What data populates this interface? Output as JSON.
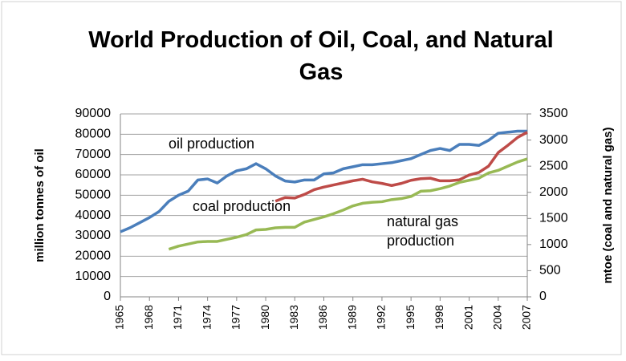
{
  "chart_data": {
    "type": "line",
    "title": "World Production of Oil, Coal, and Natural Gas",
    "ylabel": "million tonnes of oil",
    "y2label": "mtoe (coal and natural gas)",
    "categories": [
      "1965",
      null,
      null,
      "1968",
      null,
      null,
      "1971",
      null,
      null,
      "1974",
      null,
      null,
      "1977",
      null,
      null,
      "1980",
      null,
      null,
      "1983",
      null,
      null,
      "1986",
      null,
      null,
      "1989",
      null,
      null,
      "1992",
      null,
      null,
      "1995",
      null,
      null,
      "1998",
      null,
      null,
      "2001",
      null,
      null,
      "2004",
      null,
      null,
      "2007"
    ],
    "ylim": [
      0,
      90000
    ],
    "yticks": [
      0,
      10000,
      20000,
      30000,
      40000,
      50000,
      60000,
      70000,
      80000,
      90000
    ],
    "y2lim": [
      0,
      3500
    ],
    "y2ticks": [
      0,
      500,
      1000,
      1500,
      2000,
      2500,
      3000,
      3500
    ],
    "grid": true,
    "series": [
      {
        "name": "oil production",
        "color": "#4a7ebb",
        "values": [
          32000,
          34000,
          36500,
          39000,
          42000,
          47000,
          50000,
          52000,
          57500,
          58000,
          56000,
          59500,
          62000,
          63000,
          65500,
          63000,
          59500,
          57000,
          56500,
          57500,
          57500,
          60500,
          61000,
          63000,
          64000,
          65000,
          65000,
          65500,
          66000,
          67000,
          68000,
          70000,
          72000,
          73000,
          72000,
          75000,
          75000,
          74500,
          77000,
          80500,
          81000,
          81500,
          81500
        ]
      },
      {
        "name": "coal production",
        "color": "#be4b48",
        "axis": "y2",
        "values": [
          null,
          null,
          null,
          null,
          null,
          null,
          null,
          null,
          null,
          null,
          null,
          null,
          null,
          null,
          null,
          null,
          1830,
          1900,
          1890,
          1960,
          2050,
          2100,
          2140,
          2180,
          2220,
          2250,
          2200,
          2170,
          2130,
          2170,
          2230,
          2260,
          2270,
          2220,
          2220,
          2240,
          2330,
          2380,
          2500,
          2760,
          2900,
          3050,
          3150
        ]
      },
      {
        "name": "natural gas production",
        "color": "#98b954",
        "axis": "y2",
        "values": [
          null,
          null,
          null,
          null,
          null,
          910,
          970,
          1010,
          1050,
          1060,
          1060,
          1100,
          1140,
          1190,
          1280,
          1290,
          1320,
          1330,
          1330,
          1430,
          1480,
          1530,
          1590,
          1660,
          1740,
          1790,
          1810,
          1820,
          1860,
          1880,
          1920,
          2020,
          2030,
          2070,
          2120,
          2190,
          2230,
          2270,
          2370,
          2420,
          2500,
          2580,
          2640
        ]
      }
    ],
    "annotations": [
      {
        "lines": [
          "oil production"
        ]
      },
      {
        "lines": [
          "coal production"
        ]
      },
      {
        "lines": [
          "natural gas",
          "production"
        ]
      }
    ]
  }
}
